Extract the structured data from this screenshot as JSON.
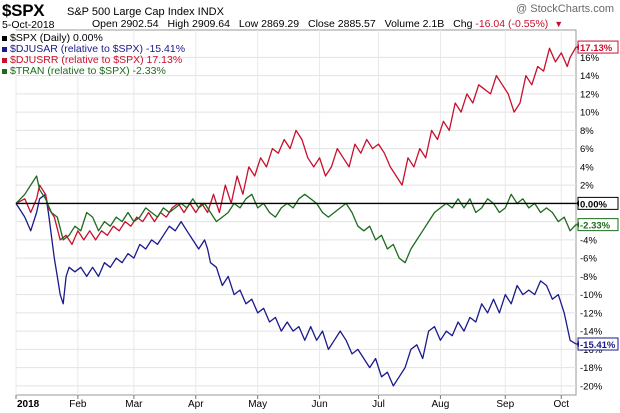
{
  "header": {
    "ticker": "$SPX",
    "name": "S&P 500 Large Cap Index INDX",
    "date": "5-Oct-2018",
    "open_label": "Open",
    "open": "2902.54",
    "high_label": "High",
    "high": "2909.64",
    "low_label": "Low",
    "low": "2869.29",
    "close_label": "Close",
    "close": "2885.57",
    "volume_label": "Volume",
    "volume": "2.1B",
    "chg_label": "Chg",
    "chg": "-16.04 (-0.55%)",
    "chg_icon": "down-triangle-icon",
    "watermark": "@ StockCharts.com"
  },
  "legend": [
    {
      "text": "$SPX (Daily) 0.00%",
      "color": "#000000"
    },
    {
      "text": "$DJUSAR (relative to $SPX) -15.41%",
      "color": "#1a1a8c"
    },
    {
      "text": "$DJUSRR (relative to $SPX) 17.13%",
      "color": "#c8102e"
    },
    {
      "text": "$TRAN (relative to $SPX) -2.33%",
      "color": "#1e6b1e"
    }
  ],
  "chart_data": {
    "type": "line",
    "title": "$SPX S&P 500 Large Cap Index INDX",
    "ylim": [
      -21,
      19
    ],
    "y_ticks": [
      "16%",
      "14%",
      "12%",
      "10%",
      "8%",
      "6%",
      "4%",
      "2%",
      "0%",
      "-2%",
      "-4%",
      "-6%",
      "-8%",
      "-10%",
      "-12%",
      "-14%",
      "-16%",
      "-18%",
      "-20%"
    ],
    "x_ticks": [
      "2018",
      "Feb",
      "Mar",
      "Apr",
      "May",
      "Jun",
      "Jul",
      "Aug",
      "Sep",
      "Oct"
    ],
    "grid": true,
    "legend_position": "top-left",
    "series": [
      {
        "name": "$SPX",
        "color": "#000000",
        "end_label": "0.00%",
        "values": [
          [
            0,
            0
          ],
          [
            190,
            0
          ]
        ]
      },
      {
        "name": "$DJUSAR",
        "color": "#1a1a8c",
        "end_label": "-15.41%",
        "values": [
          [
            0,
            0
          ],
          [
            3,
            -1.5
          ],
          [
            5,
            -3
          ],
          [
            7,
            -1
          ],
          [
            8,
            0.5
          ],
          [
            10,
            1
          ],
          [
            11,
            -1
          ],
          [
            13,
            -6
          ],
          [
            14,
            -8
          ],
          [
            15,
            -10
          ],
          [
            16,
            -11
          ],
          [
            17,
            -8
          ],
          [
            18,
            -7
          ],
          [
            20,
            -7.5
          ],
          [
            22,
            -7
          ],
          [
            24,
            -8
          ],
          [
            26,
            -7
          ],
          [
            28,
            -8
          ],
          [
            30,
            -6.5
          ],
          [
            32,
            -7
          ],
          [
            34,
            -6
          ],
          [
            36,
            -6.5
          ],
          [
            38,
            -5.5
          ],
          [
            40,
            -6
          ],
          [
            42,
            -4.5
          ],
          [
            44,
            -5
          ],
          [
            46,
            -4
          ],
          [
            48,
            -4.5
          ],
          [
            50,
            -3.5
          ],
          [
            52,
            -2.5
          ],
          [
            54,
            -3
          ],
          [
            56,
            -2
          ],
          [
            58,
            -3
          ],
          [
            60,
            -4
          ],
          [
            62,
            -5
          ],
          [
            64,
            -4
          ],
          [
            65,
            -5
          ],
          [
            66,
            -6.5
          ],
          [
            68,
            -7
          ],
          [
            70,
            -9
          ],
          [
            72,
            -8
          ],
          [
            74,
            -10
          ],
          [
            76,
            -9.5
          ],
          [
            78,
            -11
          ],
          [
            80,
            -10.5
          ],
          [
            82,
            -12
          ],
          [
            84,
            -11.5
          ],
          [
            86,
            -13
          ],
          [
            88,
            -12.5
          ],
          [
            90,
            -14
          ],
          [
            92,
            -13
          ],
          [
            94,
            -14
          ],
          [
            96,
            -13.5
          ],
          [
            98,
            -15
          ],
          [
            100,
            -13.5
          ],
          [
            102,
            -15
          ],
          [
            104,
            -14
          ],
          [
            106,
            -16
          ],
          [
            108,
            -15
          ],
          [
            110,
            -14
          ],
          [
            112,
            -15
          ],
          [
            114,
            -16.5
          ],
          [
            116,
            -16
          ],
          [
            118,
            -17
          ],
          [
            120,
            -18
          ],
          [
            122,
            -17
          ],
          [
            124,
            -19
          ],
          [
            126,
            -18.5
          ],
          [
            128,
            -20
          ],
          [
            130,
            -19
          ],
          [
            132,
            -18
          ],
          [
            134,
            -16
          ],
          [
            136,
            -15.5
          ],
          [
            138,
            -17
          ],
          [
            140,
            -14
          ],
          [
            142,
            -13.5
          ],
          [
            144,
            -15
          ],
          [
            146,
            -14
          ],
          [
            148,
            -14.5
          ],
          [
            150,
            -13
          ],
          [
            152,
            -14
          ],
          [
            154,
            -12.5
          ],
          [
            156,
            -13
          ],
          [
            158,
            -11
          ],
          [
            160,
            -12
          ],
          [
            162,
            -10.5
          ],
          [
            164,
            -12
          ],
          [
            166,
            -10
          ],
          [
            168,
            -11
          ],
          [
            170,
            -9
          ],
          [
            172,
            -10
          ],
          [
            174,
            -9.5
          ],
          [
            176,
            -10
          ],
          [
            178,
            -8.5
          ],
          [
            180,
            -9
          ],
          [
            182,
            -10.5
          ],
          [
            184,
            -10
          ],
          [
            186,
            -12
          ],
          [
            188,
            -15
          ],
          [
            190,
            -15.41
          ]
        ]
      },
      {
        "name": "$DJUSRR",
        "color": "#c8102e",
        "end_label": "17.13%",
        "values": [
          [
            0,
            0
          ],
          [
            3,
            0.5
          ],
          [
            5,
            -1
          ],
          [
            7,
            0.5
          ],
          [
            8,
            2
          ],
          [
            10,
            1
          ],
          [
            11,
            -0.5
          ],
          [
            13,
            -1.5
          ],
          [
            15,
            -4
          ],
          [
            17,
            -3.5
          ],
          [
            19,
            -4.5
          ],
          [
            21,
            -3
          ],
          [
            23,
            -4
          ],
          [
            25,
            -3
          ],
          [
            27,
            -4
          ],
          [
            29,
            -3
          ],
          [
            31,
            -3.5
          ],
          [
            33,
            -2.5
          ],
          [
            35,
            -3
          ],
          [
            37,
            -2
          ],
          [
            39,
            -2.5
          ],
          [
            41,
            -1.5
          ],
          [
            43,
            -2
          ],
          [
            45,
            -1
          ],
          [
            47,
            -2
          ],
          [
            49,
            -1
          ],
          [
            51,
            -1.5
          ],
          [
            53,
            -0.5
          ],
          [
            55,
            0
          ],
          [
            57,
            -1
          ],
          [
            59,
            0
          ],
          [
            61,
            -1
          ],
          [
            63,
            0
          ],
          [
            65,
            -1
          ],
          [
            67,
            1
          ],
          [
            69,
            -1
          ],
          [
            71,
            2
          ],
          [
            73,
            0
          ],
          [
            75,
            3
          ],
          [
            77,
            1
          ],
          [
            79,
            4
          ],
          [
            81,
            3
          ],
          [
            83,
            5
          ],
          [
            85,
            4
          ],
          [
            87,
            6
          ],
          [
            89,
            5.5
          ],
          [
            91,
            7
          ],
          [
            93,
            6
          ],
          [
            95,
            8
          ],
          [
            97,
            7
          ],
          [
            99,
            5
          ],
          [
            101,
            4
          ],
          [
            103,
            5
          ],
          [
            105,
            3
          ],
          [
            107,
            4
          ],
          [
            109,
            6
          ],
          [
            111,
            5
          ],
          [
            113,
            4
          ],
          [
            115,
            6.5
          ],
          [
            117,
            5.5
          ],
          [
            119,
            7
          ],
          [
            121,
            6
          ],
          [
            123,
            6.5
          ],
          [
            125,
            5.5
          ],
          [
            127,
            4
          ],
          [
            129,
            3
          ],
          [
            131,
            2
          ],
          [
            133,
            5
          ],
          [
            135,
            4
          ],
          [
            137,
            6
          ],
          [
            139,
            5
          ],
          [
            141,
            8
          ],
          [
            143,
            7
          ],
          [
            145,
            9
          ],
          [
            147,
            8
          ],
          [
            149,
            11
          ],
          [
            151,
            10
          ],
          [
            153,
            12
          ],
          [
            155,
            11
          ],
          [
            157,
            13
          ],
          [
            159,
            12.5
          ],
          [
            161,
            12
          ],
          [
            163,
            14
          ],
          [
            165,
            13
          ],
          [
            167,
            12
          ],
          [
            169,
            10
          ],
          [
            171,
            11
          ],
          [
            173,
            14
          ],
          [
            175,
            13
          ],
          [
            177,
            15
          ],
          [
            179,
            14.5
          ],
          [
            181,
            17
          ],
          [
            183,
            15.5
          ],
          [
            185,
            16.5
          ],
          [
            187,
            15
          ],
          [
            188,
            16
          ],
          [
            190,
            17.13
          ]
        ]
      },
      {
        "name": "$TRAN",
        "color": "#1e6b1e",
        "end_label": "-2.33%",
        "values": [
          [
            0,
            0
          ],
          [
            3,
            1
          ],
          [
            5,
            2
          ],
          [
            7,
            3
          ],
          [
            8,
            1.5
          ],
          [
            10,
            0.5
          ],
          [
            12,
            -1
          ],
          [
            14,
            -1.5
          ],
          [
            16,
            -4
          ],
          [
            18,
            -3.5
          ],
          [
            20,
            -2.5
          ],
          [
            22,
            -3
          ],
          [
            24,
            -1
          ],
          [
            26,
            -1.5
          ],
          [
            28,
            -3
          ],
          [
            30,
            -2
          ],
          [
            32,
            -2.5
          ],
          [
            34,
            -1.5
          ],
          [
            36,
            -2
          ],
          [
            38,
            -1
          ],
          [
            40,
            -2
          ],
          [
            42,
            -1.5
          ],
          [
            44,
            -0.5
          ],
          [
            46,
            -1
          ],
          [
            48,
            -1.5
          ],
          [
            50,
            -0.5
          ],
          [
            52,
            -1
          ],
          [
            54,
            -0.5
          ],
          [
            56,
            0
          ],
          [
            58,
            -0.5
          ],
          [
            60,
            0.5
          ],
          [
            62,
            -0.5
          ],
          [
            64,
            0
          ],
          [
            66,
            -1
          ],
          [
            68,
            -2
          ],
          [
            70,
            -1.5
          ],
          [
            72,
            -1
          ],
          [
            74,
            0
          ],
          [
            76,
            -0.5
          ],
          [
            78,
            0.5
          ],
          [
            80,
            1
          ],
          [
            82,
            -0.5
          ],
          [
            84,
            0
          ],
          [
            86,
            -1
          ],
          [
            88,
            -1.5
          ],
          [
            90,
            -0.5
          ],
          [
            92,
            0
          ],
          [
            94,
            -0.5
          ],
          [
            96,
            0.5
          ],
          [
            98,
            1
          ],
          [
            100,
            0.5
          ],
          [
            102,
            0
          ],
          [
            104,
            -1
          ],
          [
            106,
            -1.5
          ],
          [
            108,
            -1
          ],
          [
            110,
            -0.5
          ],
          [
            112,
            0
          ],
          [
            114,
            -1
          ],
          [
            116,
            -2.5
          ],
          [
            118,
            -3
          ],
          [
            120,
            -2.5
          ],
          [
            122,
            -4
          ],
          [
            124,
            -3.5
          ],
          [
            126,
            -5
          ],
          [
            128,
            -4.5
          ],
          [
            130,
            -6
          ],
          [
            132,
            -6.5
          ],
          [
            134,
            -5
          ],
          [
            136,
            -4
          ],
          [
            138,
            -3
          ],
          [
            140,
            -2
          ],
          [
            142,
            -1
          ],
          [
            144,
            -0.5
          ],
          [
            146,
            0
          ],
          [
            148,
            -0.5
          ],
          [
            150,
            0.5
          ],
          [
            152,
            -0.5
          ],
          [
            154,
            0.5
          ],
          [
            156,
            -1
          ],
          [
            158,
            -0.5
          ],
          [
            160,
            0.5
          ],
          [
            162,
            0
          ],
          [
            164,
            -1
          ],
          [
            166,
            -0.5
          ],
          [
            168,
            1
          ],
          [
            170,
            0
          ],
          [
            172,
            0.5
          ],
          [
            174,
            -0.5
          ],
          [
            176,
            0
          ],
          [
            178,
            -1
          ],
          [
            180,
            -0.5
          ],
          [
            182,
            -1
          ],
          [
            184,
            -2
          ],
          [
            186,
            -1.5
          ],
          [
            188,
            -3
          ],
          [
            190,
            -2.33
          ]
        ]
      }
    ]
  }
}
